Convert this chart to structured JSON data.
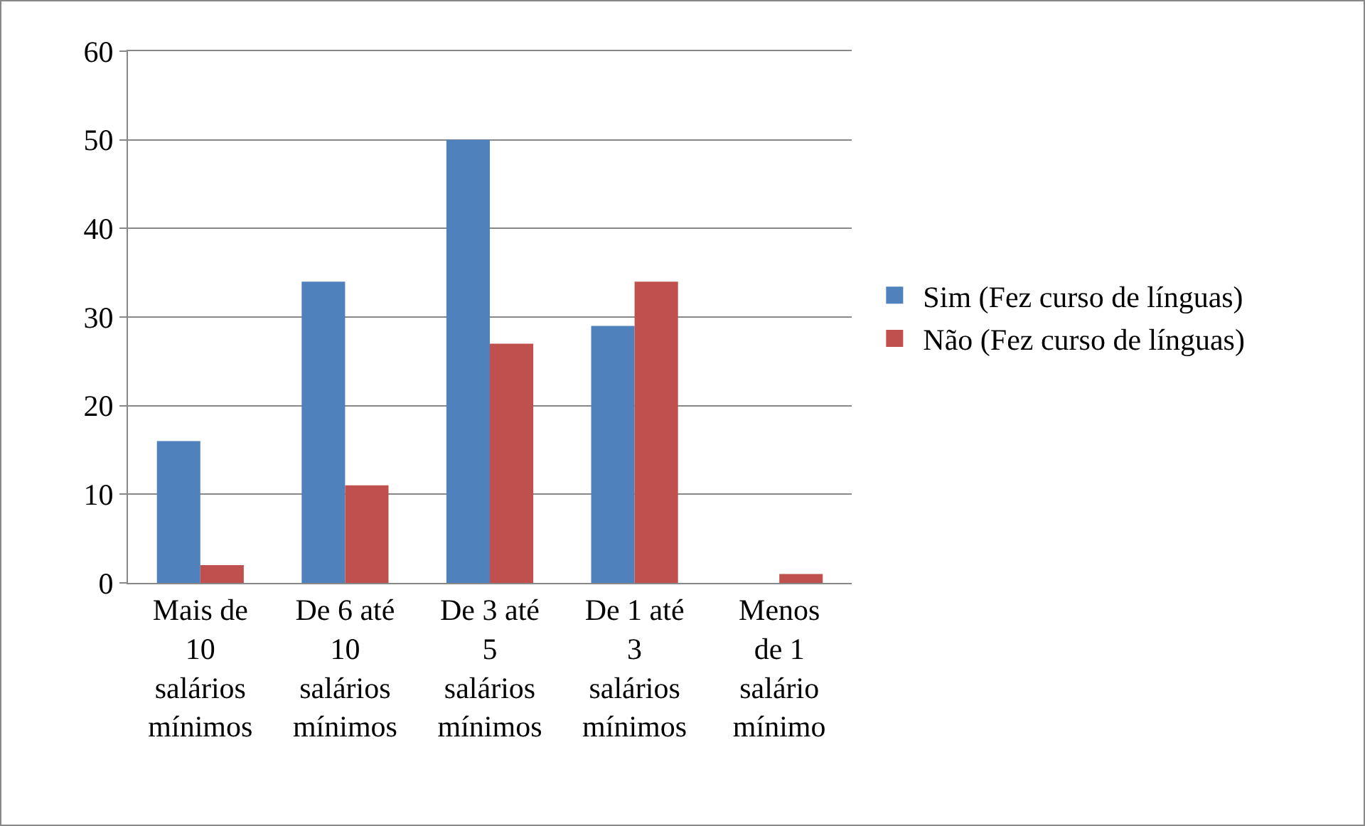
{
  "chart_data": {
    "type": "bar",
    "categories": [
      "Mais de\n10\nsalários\nmínimos",
      "De 6 até\n10\nsalários\nmínimos",
      "De 3 até\n5\nsalários\nmínimos",
      "De 1 até\n3\nsalários\nmínimos",
      "Menos\nde 1\nsalário\nmínimo"
    ],
    "series": [
      {
        "name": "Sim (Fez curso de línguas)",
        "color": "#4f81bd",
        "values": [
          16,
          34,
          50,
          29,
          0
        ]
      },
      {
        "name": "Não (Fez curso de línguas)",
        "color": "#c0504d",
        "values": [
          2,
          11,
          27,
          34,
          1
        ]
      }
    ],
    "ylim": [
      0,
      60
    ],
    "yticks": [
      0,
      10,
      20,
      30,
      40,
      50,
      60
    ],
    "grid": "y",
    "legend": "right"
  }
}
